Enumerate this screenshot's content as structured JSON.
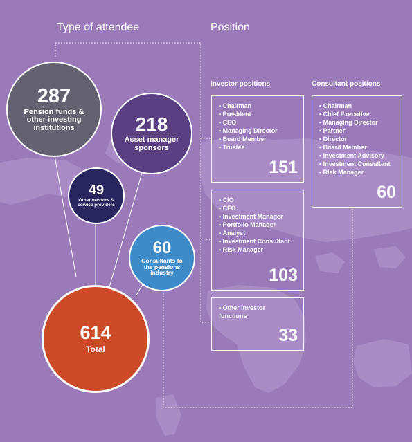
{
  "headings": {
    "attendee": "Type of attendee",
    "position": "Position",
    "investor": "Investor positions",
    "consultant": "Consultant positions"
  },
  "bubbles": {
    "pension": {
      "num": "287",
      "label": "Pension funds & other investing institutions",
      "color": "#646170"
    },
    "asset": {
      "num": "218",
      "label": "Asset manager sponsors",
      "color": "#5a3f82"
    },
    "vendors": {
      "num": "49",
      "label": "Other vendors & service providers",
      "color": "#29265f"
    },
    "consultants": {
      "num": "60",
      "label": "Consultants to the pensions industry",
      "color": "#3d8bc9"
    },
    "total": {
      "num": "614",
      "label": "Total",
      "color": "#cc4a28"
    }
  },
  "boxes": {
    "investor_senior": {
      "items": [
        "Chairman",
        "President",
        "CEO",
        "Managing Director",
        "Board Member",
        "Trustee"
      ],
      "count": "151"
    },
    "investor_ops": {
      "items": [
        "CIO",
        "CFO",
        "Investment Manager",
        "Portfolio Manager",
        "Analyst",
        "Investment Consultant",
        "Risk Manager"
      ],
      "count": "103"
    },
    "investor_other": {
      "text": "Other investor functions",
      "count": "33"
    },
    "consultant": {
      "items": [
        "Chairman",
        "Chief Executive",
        "Managing Director",
        "Partner",
        "Director",
        "Board Member",
        "Investment Advisory",
        "Investment Consultant",
        "Risk Manager"
      ],
      "count": "60"
    }
  }
}
